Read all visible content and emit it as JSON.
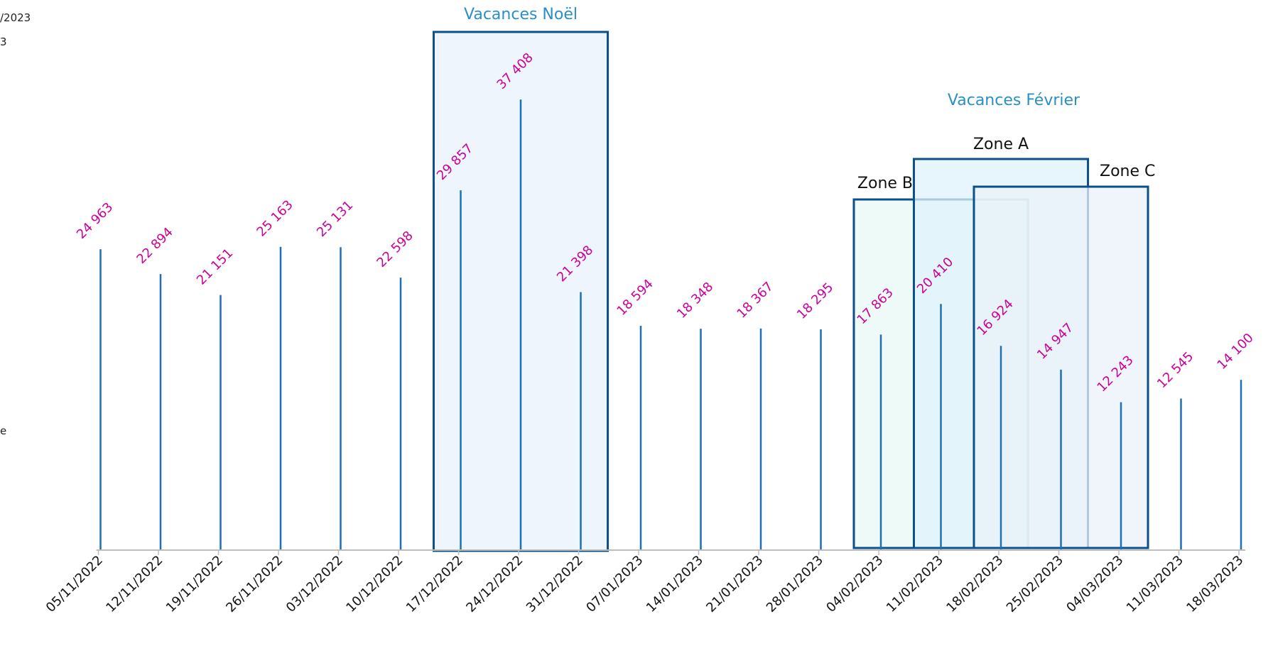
{
  "page": {
    "clipped_text_1": "/2023",
    "clipped_text_2": "3",
    "clipped_text_3": "e"
  },
  "colors": {
    "bar": "#1f6fb5",
    "value_label": "#cc0099",
    "axis": "#bdbdbd",
    "period_border": "#0d4f8b",
    "noel_fill": "#eef5fc",
    "zone_b_fill": "#e8f8f6",
    "zone_a_fill": "#dff3fb",
    "zone_c_fill": "#eaf1f8",
    "period_title": "#2a8fc7"
  },
  "chart_data": {
    "type": "bar",
    "categories": [
      "05/11/2022",
      "12/11/2022",
      "19/11/2022",
      "26/11/2022",
      "03/12/2022",
      "10/12/2022",
      "17/12/2022",
      "24/12/2022",
      "31/12/2022",
      "07/01/2023",
      "14/01/2023",
      "21/01/2023",
      "28/01/2023",
      "04/02/2023",
      "11/02/2023",
      "18/02/2023",
      "25/02/2023",
      "04/03/2023",
      "11/03/2023",
      "18/03/2023"
    ],
    "values": [
      24963,
      22894,
      21151,
      25163,
      25131,
      22598,
      29857,
      37408,
      21398,
      18594,
      18348,
      18367,
      18295,
      17863,
      20410,
      16924,
      14947,
      12243,
      12545,
      14100
    ],
    "value_labels": [
      "24 963",
      "22 894",
      "21 151",
      "25 163",
      "25 131",
      "22 598",
      "29 857",
      "37 408",
      "21 398",
      "18 594",
      "18 348",
      "18 367",
      "18 295",
      "17 863",
      "20 410",
      "16 924",
      "14 947",
      "12 243",
      "12 545",
      "14 100"
    ],
    "ylim": [
      0,
      42500
    ],
    "grid": false,
    "periods": [
      {
        "id": "noel",
        "label": "Vacances Noël",
        "start_index": 6,
        "end_index": 8
      },
      {
        "id": "zone_b",
        "label": "Zone B",
        "start_index": 13,
        "end_index": 15
      },
      {
        "id": "zone_a",
        "label": "Zone A",
        "start_index": 14,
        "end_index": 16
      },
      {
        "id": "zone_c",
        "label": "Zone C",
        "start_index": 15,
        "end_index": 17
      }
    ],
    "group_label": "Vacances Février"
  }
}
